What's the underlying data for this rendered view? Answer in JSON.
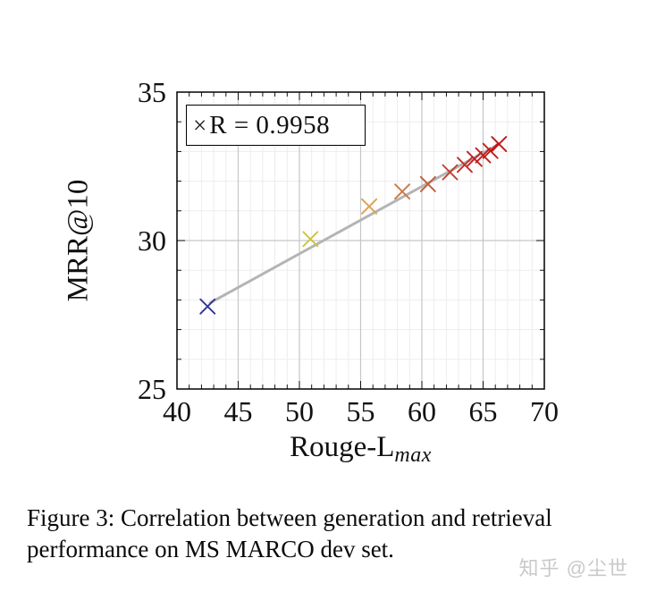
{
  "caption": {
    "line1": "Figure 3: Correlation between generation and retrieval",
    "line2": "performance on MS MARCO dev set."
  },
  "watermark": "知乎 @尘世",
  "chart_data": {
    "type": "scatter",
    "xlabel": "Rouge-L",
    "xlabel_sub": "max",
    "ylabel": "MRR@10",
    "xlim": [
      40,
      70
    ],
    "ylim": [
      25,
      35
    ],
    "x_major_ticks": [
      40,
      45,
      50,
      55,
      60,
      65,
      70
    ],
    "y_major_ticks": [
      25,
      30,
      35
    ],
    "minor_unit": 1,
    "grid": "both",
    "colors": {
      "minor_grid": "#ededed",
      "major_grid": "#c6c6c6",
      "axis": "#000000",
      "fit_line": "#b4b4b4"
    },
    "legend": {
      "marker": "×",
      "label": "R = 0.9958",
      "position": "top-left"
    },
    "fit_line": {
      "x1": 42.7,
      "y1": 27.9,
      "x2": 66.3,
      "y2": 33.25
    },
    "series": [
      {
        "name": "correlation-points",
        "marker": "x",
        "points": [
          {
            "x": 42.5,
            "y": 27.78,
            "color": "#32329e"
          },
          {
            "x": 50.9,
            "y": 30.05,
            "color": "#cec43e"
          },
          {
            "x": 55.7,
            "y": 31.15,
            "color": "#dea153"
          },
          {
            "x": 58.4,
            "y": 31.65,
            "color": "#c87a48"
          },
          {
            "x": 60.5,
            "y": 31.9,
            "color": "#c55c3c"
          },
          {
            "x": 62.3,
            "y": 32.3,
            "color": "#c23f30"
          },
          {
            "x": 63.5,
            "y": 32.55,
            "color": "#c1302a"
          },
          {
            "x": 64.3,
            "y": 32.75,
            "color": "#c02524"
          },
          {
            "x": 65.0,
            "y": 32.87,
            "color": "#c02020"
          },
          {
            "x": 65.6,
            "y": 33.02,
            "color": "#bf1b1b"
          },
          {
            "x": 66.3,
            "y": 33.25,
            "color": "#bf1717"
          }
        ]
      }
    ]
  }
}
